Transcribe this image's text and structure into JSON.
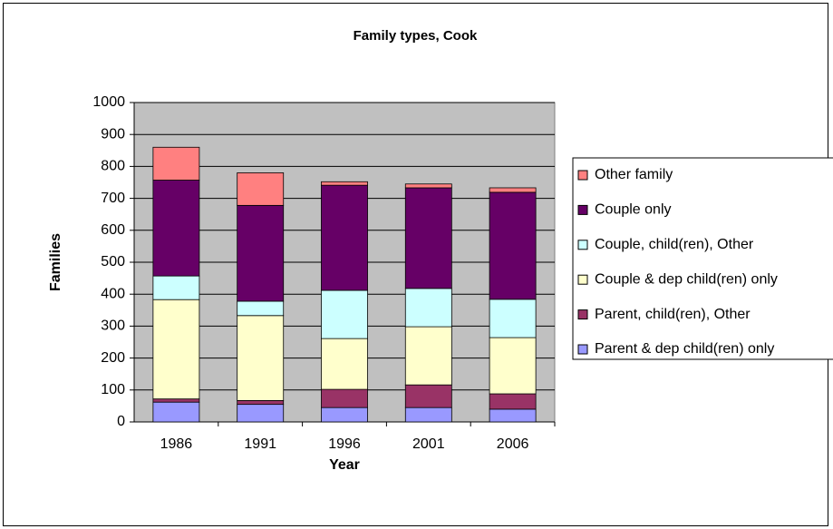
{
  "chart_data": {
    "type": "bar",
    "stacked": true,
    "title": "Family types, Cook",
    "xlabel": "Year",
    "ylabel": "Families",
    "categories": [
      "1986",
      "1991",
      "1996",
      "2001",
      "2006"
    ],
    "series": [
      {
        "name": "Parent & dep child(ren) only",
        "color": "#9999ff",
        "values": [
          62,
          55,
          45,
          45,
          40
        ]
      },
      {
        "name": "Parent, child(ren), Other",
        "color": "#993366",
        "values": [
          10,
          12,
          57,
          71,
          48
        ]
      },
      {
        "name": "Couple & dep child(ren) only",
        "color": "#ffffcc",
        "values": [
          311,
          266,
          159,
          182,
          176
        ]
      },
      {
        "name": "Couple, child(ren), Other",
        "color": "#ccffff",
        "values": [
          74,
          45,
          151,
          120,
          120
        ]
      },
      {
        "name": "Couple only",
        "color": "#660066",
        "values": [
          300,
          300,
          329,
          315,
          335
        ]
      },
      {
        "name": "Other family",
        "color": "#ff8080",
        "values": [
          103,
          102,
          11,
          12,
          14
        ]
      }
    ],
    "ylim": [
      0,
      1000
    ],
    "yticks": [
      0,
      100,
      200,
      300,
      400,
      500,
      600,
      700,
      800,
      900,
      1000
    ],
    "grid": true,
    "legend": "right"
  }
}
